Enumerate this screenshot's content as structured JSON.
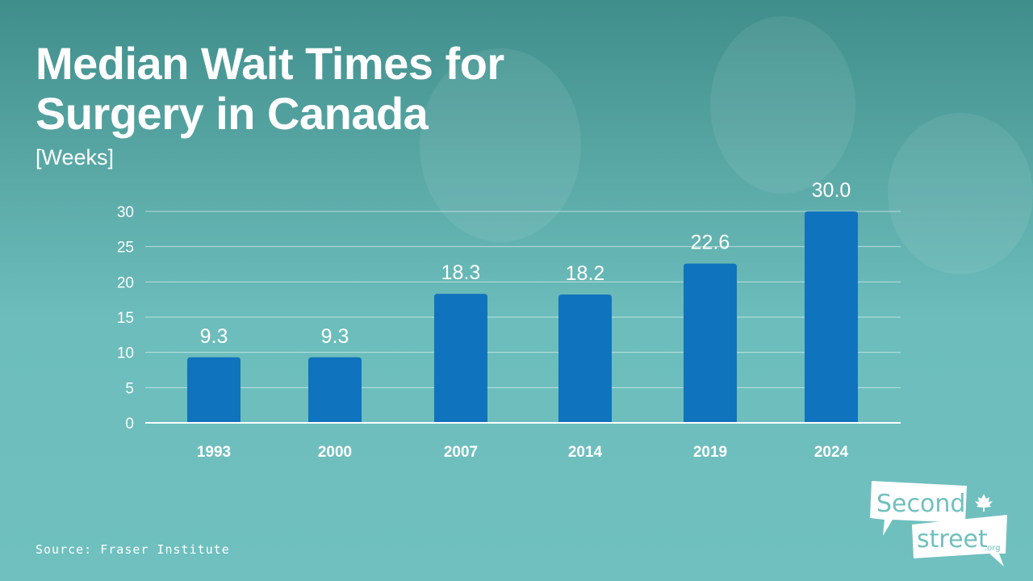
{
  "title_line1": "Median Wait Times for",
  "title_line2": "Surgery in Canada",
  "subtitle": "[Weeks]",
  "source": "Source: Fraser Institute",
  "logo": {
    "line1": "Second",
    "line2": "street",
    "suffix": ".org"
  },
  "colors": {
    "bar": "#1073bd",
    "background": "#6fc0bf",
    "text": "#ffffff"
  },
  "chart_data": {
    "type": "bar",
    "title": "Median Wait Times for Surgery in Canada",
    "ylabel": "[Weeks]",
    "categories": [
      "1993",
      "2000",
      "2007",
      "2014",
      "2019",
      "2024"
    ],
    "values": [
      9.3,
      9.3,
      18.3,
      18.2,
      22.6,
      30.0
    ],
    "labels": [
      "9.3",
      "9.3",
      "18.3",
      "18.2",
      "22.6",
      "30.0"
    ],
    "yticks": [
      "0",
      "5",
      "10",
      "15",
      "20",
      "25",
      "30"
    ],
    "ylim": [
      0,
      30
    ],
    "grid": true
  }
}
